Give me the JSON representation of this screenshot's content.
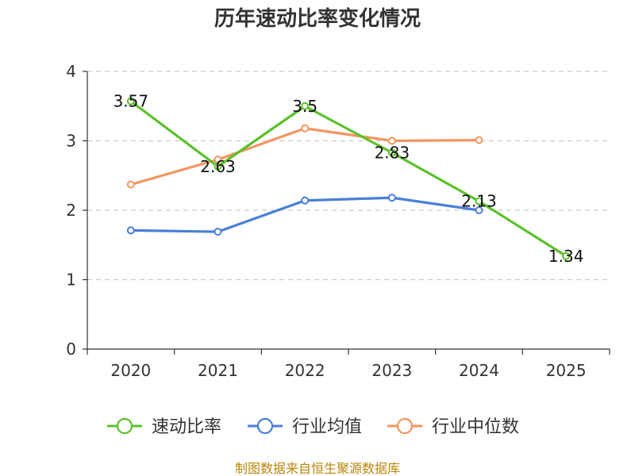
{
  "chart_data": {
    "type": "line",
    "title": "历年速动比率变化情况",
    "xlabel": "",
    "ylabel": "",
    "categories": [
      "2020",
      "2021",
      "2022",
      "2023",
      "2024",
      "2025"
    ],
    "ylim": [
      0,
      4
    ],
    "yticks": [
      0,
      1,
      2,
      3,
      4
    ],
    "grid": true,
    "legend_position": "bottom",
    "series": [
      {
        "name": "速动比率",
        "color": "#5cc12b",
        "values": [
          3.57,
          2.63,
          3.5,
          2.83,
          2.13,
          1.34
        ],
        "labels": [
          "3.57",
          "2.63",
          "3.5",
          "2.83",
          "2.13",
          "1.34"
        ],
        "show_labels": true
      },
      {
        "name": "行业均值",
        "color": "#4a7fd9",
        "values": [
          1.71,
          1.69,
          2.14,
          2.18,
          2.0,
          null
        ],
        "labels": [],
        "show_labels": false
      },
      {
        "name": "行业中位数",
        "color": "#f49560",
        "values": [
          2.37,
          2.73,
          3.18,
          3.0,
          3.01,
          null
        ],
        "labels": [],
        "show_labels": false
      }
    ]
  },
  "footer": {
    "source": "制图数据来自恒生聚源数据库"
  }
}
